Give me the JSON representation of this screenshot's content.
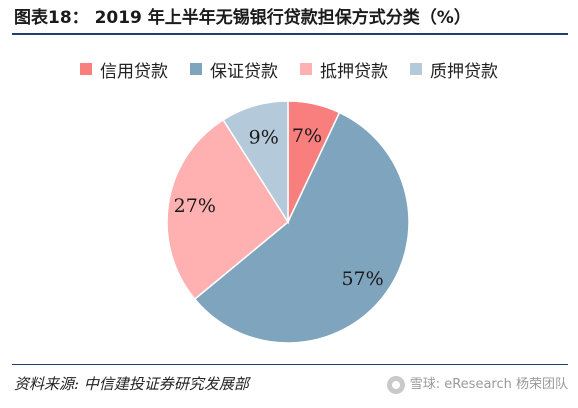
{
  "header": {
    "title": "图表18： 2019 年上半年无锡银行贷款担保方式分类（%）"
  },
  "footer": {
    "source": "资料来源: 中信建投证券研究发展部",
    "watermark": "雪球: eResearch 杨荣团队"
  },
  "colors": {
    "rule": "#1f3f73"
  },
  "chart_data": {
    "type": "pie",
    "title": "2019 年上半年无锡银行贷款担保方式分类（%）",
    "legend_position": "top",
    "start": "12 o'clock, clockwise",
    "slices": [
      {
        "name": "信用贷款",
        "value": 7,
        "label": "7%",
        "color": "#f97f7f"
      },
      {
        "name": "保证贷款",
        "value": 57,
        "label": "57%",
        "color": "#7fa4bd"
      },
      {
        "name": "抵押贷款",
        "value": 27,
        "label": "27%",
        "color": "#ffb0b0"
      },
      {
        "name": "质押贷款",
        "value": 9,
        "label": "9%",
        "color": "#b4c9d9"
      }
    ]
  }
}
